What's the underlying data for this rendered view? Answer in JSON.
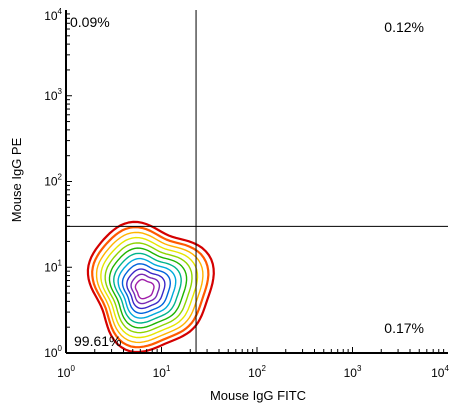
{
  "chart_data": {
    "type": "contour",
    "xlabel": "Mouse IgG FITC",
    "ylabel": "Mouse IgG PE",
    "x_scale": "log",
    "y_scale": "log",
    "xlim": [
      1,
      10000
    ],
    "ylim": [
      1,
      10000
    ],
    "x_ticks": [
      {
        "base": "10",
        "exp": "0",
        "value": 1
      },
      {
        "base": "10",
        "exp": "1",
        "value": 10
      },
      {
        "base": "10",
        "exp": "2",
        "value": 100
      },
      {
        "base": "10",
        "exp": "3",
        "value": 1000
      },
      {
        "base": "10",
        "exp": "4",
        "value": 10000
      }
    ],
    "y_ticks": [
      {
        "base": "10",
        "exp": "0",
        "value": 1
      },
      {
        "base": "10",
        "exp": "1",
        "value": 10
      },
      {
        "base": "10",
        "exp": "2",
        "value": 100
      },
      {
        "base": "10",
        "exp": "3",
        "value": 1000
      },
      {
        "base": "10",
        "exp": "4",
        "value": 10000
      }
    ],
    "quadrant_gates": {
      "x": 23,
      "y": 30
    },
    "quadrants": [
      {
        "position": "upper-left",
        "label": "0.09%"
      },
      {
        "position": "upper-right",
        "label": "0.12%"
      },
      {
        "position": "lower-right",
        "label": "0.17%"
      },
      {
        "position": "lower-left",
        "label": "99.61%"
      }
    ],
    "population": {
      "center_x": 6.5,
      "center_y": 5.5,
      "x_range": [
        1.4,
        25
      ],
      "y_range": [
        1,
        30
      ],
      "contour_colors": [
        "#d40000",
        "#ff5a00",
        "#ffb400",
        "#e6e600",
        "#8ed400",
        "#1fb400",
        "#00b48c",
        "#00aadc",
        "#0064dc",
        "#3c28c8",
        "#7828b4",
        "#a01eaa"
      ]
    }
  }
}
